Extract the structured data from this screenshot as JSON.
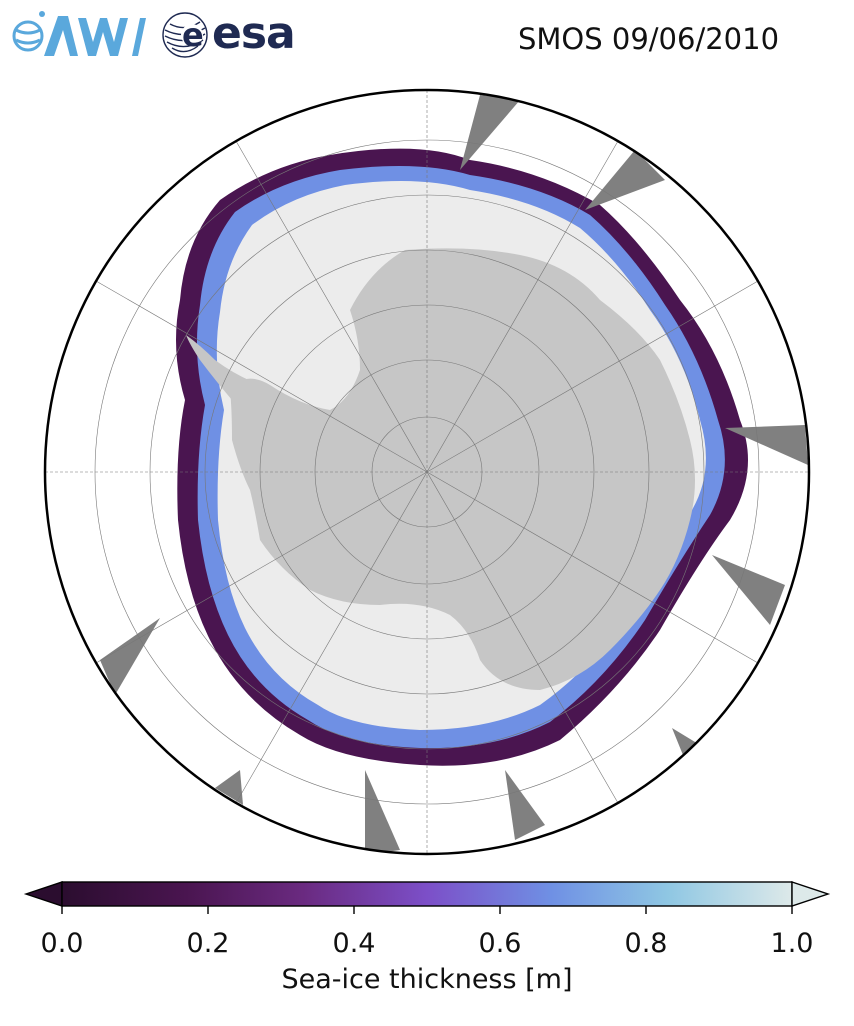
{
  "header": {
    "title": "SMOS 09/06/2010",
    "logo_awi_text": "AWI",
    "logo_esa_text": "esa"
  },
  "map": {
    "projection": "south-polar-stereographic",
    "land_color": "#c6c6c6",
    "ice_thick_color": "#ececec",
    "missing_color": "#808080",
    "gridlines": true
  },
  "colorbar": {
    "label": "Sea-ice thickness [m]",
    "colormap": "dense_r",
    "min": 0.0,
    "max": 1.0,
    "extend": "both",
    "ticks": [
      "0.0",
      "0.2",
      "0.4",
      "0.6",
      "0.8",
      "1.0"
    ],
    "color_stops": [
      "#2b0d2f",
      "#4a1550",
      "#6a2a80",
      "#7c4fc8",
      "#6f90e4",
      "#8fc7e3",
      "#dde9e9"
    ]
  }
}
